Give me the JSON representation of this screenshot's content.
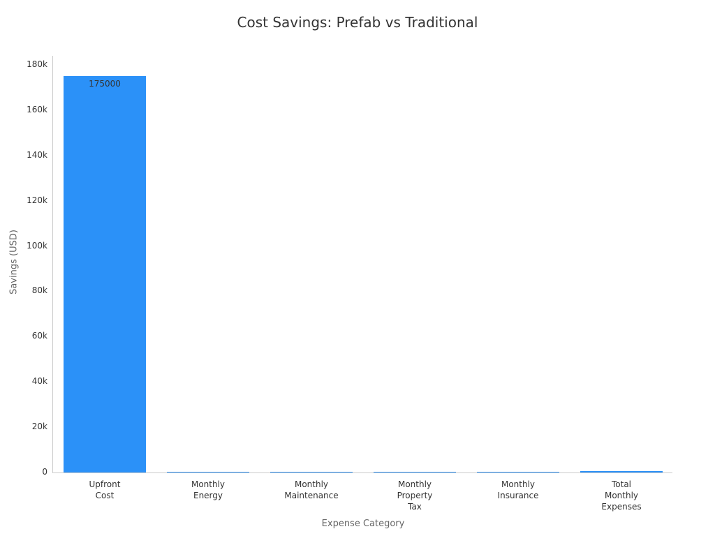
{
  "chart_data": {
    "type": "bar",
    "title": "Cost Savings: Prefab vs Traditional",
    "xlabel": "Expense Category",
    "ylabel": "Savings (USD)",
    "categories": [
      "Upfront Cost",
      "Monthly Energy",
      "Monthly Maintenance",
      "Monthly Property Tax",
      "Monthly Insurance",
      "Total Monthly Expenses"
    ],
    "values": [
      175000,
      150,
      100,
      300,
      100,
      650
    ],
    "ylim": [
      0,
      185000
    ],
    "yticks": [
      "0",
      "20k",
      "40k",
      "60k",
      "80k",
      "100k",
      "120k",
      "140k",
      "160k",
      "180k"
    ],
    "color": "#2b91f8"
  }
}
